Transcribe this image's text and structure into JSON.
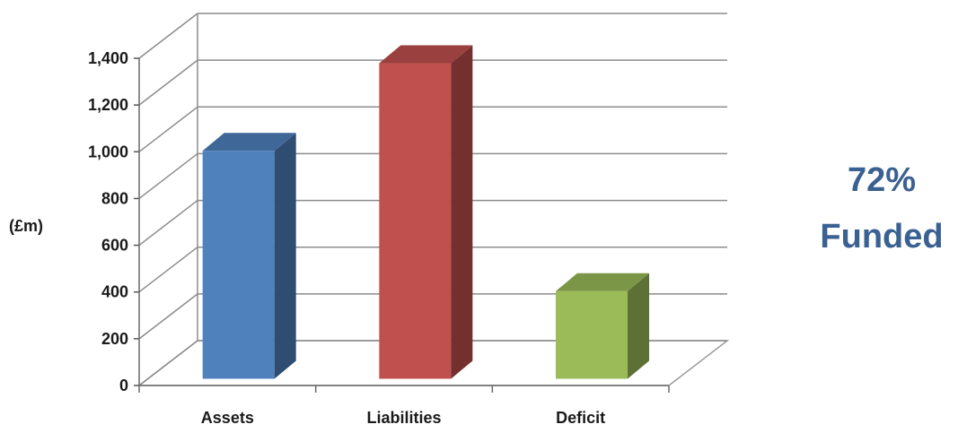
{
  "chart_data": {
    "type": "bar",
    "categories": [
      "Assets",
      "Liabilities",
      "Deficit"
    ],
    "values": [
      975,
      1350,
      375
    ],
    "title": "",
    "xlabel": "",
    "ylabel": "(£m)",
    "ylim": [
      0,
      1400
    ],
    "yticks": [
      "0",
      "200",
      "400",
      "600",
      "800",
      "1,000",
      "1,200",
      "1,400"
    ],
    "grid": true,
    "style": "3d-column",
    "bar_colors": [
      "#4f81bd",
      "#c0504d",
      "#9bbb59"
    ],
    "annotation": {
      "line1": "72%",
      "line2": "Funded",
      "color": "#3a6192"
    }
  }
}
